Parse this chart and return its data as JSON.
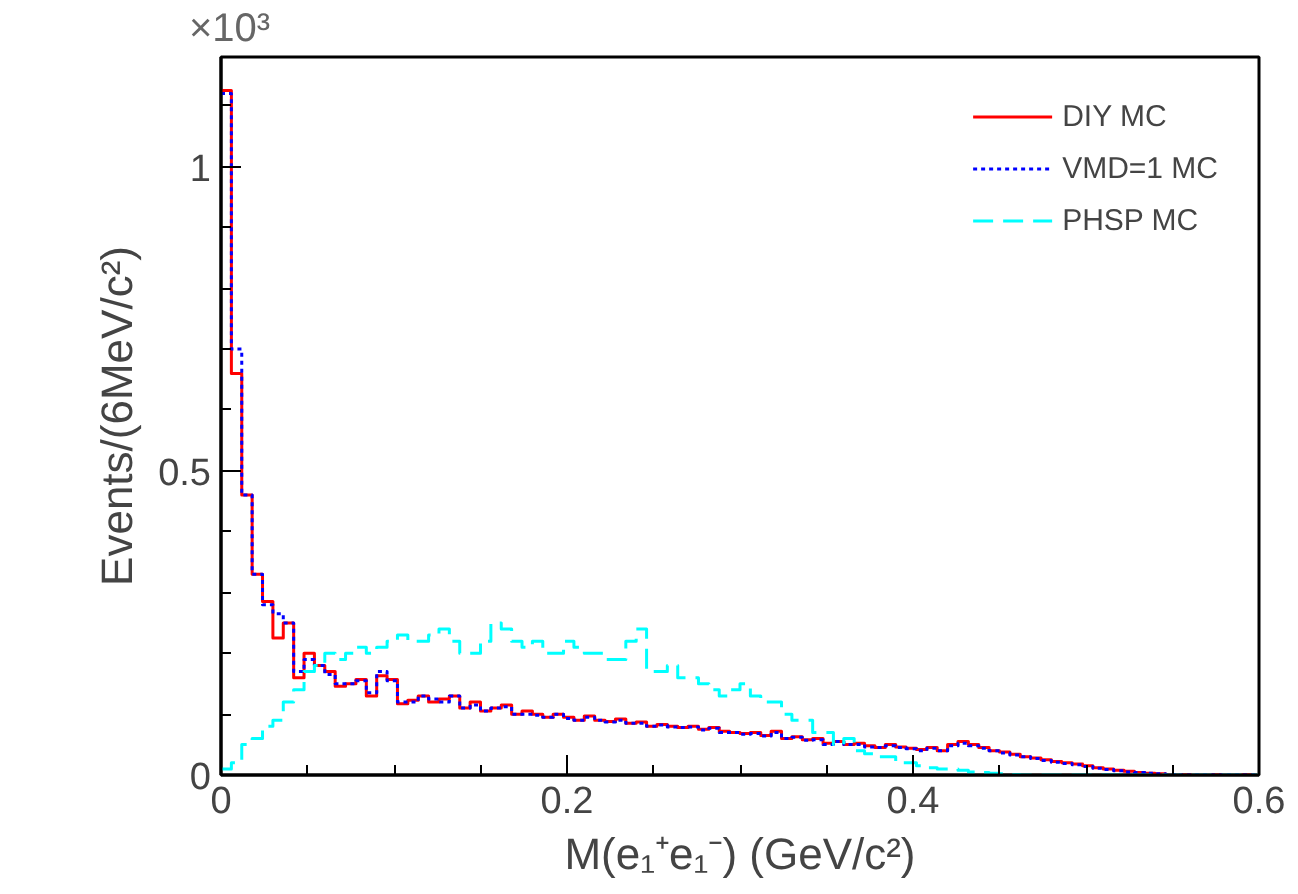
{
  "chart_data": {
    "type": "histogram",
    "xlabel": "M(e₁⁺e₁⁻) (GeV/c²)",
    "ylabel": "Events/(6MeV/c²)",
    "annotations": [
      "×10³"
    ],
    "bins": [
      0,
      0.006,
      0.012,
      0.018,
      0.024,
      0.03,
      0.036,
      0.042,
      0.048,
      0.054,
      0.06,
      0.066,
      0.072,
      0.078,
      0.084,
      0.09,
      0.096,
      0.102,
      0.108,
      0.114,
      0.12,
      0.126,
      0.132,
      0.138,
      0.144,
      0.15,
      0.156,
      0.162,
      0.168,
      0.174,
      0.18,
      0.186,
      0.192,
      0.198,
      0.204,
      0.21,
      0.216,
      0.222,
      0.228,
      0.234,
      0.24,
      0.246,
      0.252,
      0.258,
      0.264,
      0.27,
      0.276,
      0.282,
      0.288,
      0.294,
      0.3,
      0.306,
      0.312,
      0.318,
      0.324,
      0.33,
      0.336,
      0.342,
      0.348,
      0.354,
      0.36,
      0.366,
      0.372,
      0.378,
      0.384,
      0.39,
      0.396,
      0.402,
      0.408,
      0.414,
      0.42,
      0.426,
      0.432,
      0.438,
      0.444,
      0.45,
      0.456,
      0.462,
      0.468,
      0.474,
      0.48,
      0.486,
      0.492,
      0.498,
      0.504,
      0.51,
      0.516,
      0.522,
      0.528,
      0.534,
      0.54,
      0.546,
      0.552,
      0.558,
      0.564,
      0.57,
      0.576,
      0.582,
      0.588,
      0.594,
      0.6
    ],
    "series": [
      {
        "name": "DIY MC",
        "color": "#ff0000",
        "line_style": "solid",
        "values": [
          1.125,
          0.66,
          0.46,
          0.33,
          0.285,
          0.225,
          0.25,
          0.16,
          0.2,
          0.18,
          0.17,
          0.146,
          0.15,
          0.157,
          0.13,
          0.163,
          0.157,
          0.117,
          0.123,
          0.13,
          0.12,
          0.125,
          0.13,
          0.11,
          0.12,
          0.105,
          0.11,
          0.115,
          0.1,
          0.105,
          0.1,
          0.095,
          0.1,
          0.095,
          0.09,
          0.097,
          0.09,
          0.088,
          0.092,
          0.085,
          0.087,
          0.08,
          0.083,
          0.08,
          0.078,
          0.08,
          0.075,
          0.078,
          0.072,
          0.07,
          0.068,
          0.07,
          0.065,
          0.072,
          0.06,
          0.063,
          0.058,
          0.06,
          0.052,
          0.055,
          0.05,
          0.052,
          0.048,
          0.045,
          0.05,
          0.046,
          0.044,
          0.042,
          0.045,
          0.04,
          0.05,
          0.055,
          0.05,
          0.045,
          0.04,
          0.038,
          0.034,
          0.03,
          0.028,
          0.025,
          0.022,
          0.02,
          0.018,
          0.015,
          0.012,
          0.01,
          0.008,
          0.006,
          0.004,
          0.003,
          0.002,
          0.001,
          0,
          0,
          0,
          0,
          0,
          0,
          0,
          0
        ]
      },
      {
        "name": "VMD=1 MC",
        "color": "#0000ff",
        "line_style": "dotted",
        "values": [
          1.12,
          0.7,
          0.46,
          0.33,
          0.28,
          0.265,
          0.25,
          0.17,
          0.19,
          0.18,
          0.165,
          0.15,
          0.15,
          0.155,
          0.135,
          0.17,
          0.155,
          0.12,
          0.12,
          0.13,
          0.125,
          0.12,
          0.13,
          0.11,
          0.115,
          0.105,
          0.11,
          0.112,
          0.1,
          0.1,
          0.098,
          0.095,
          0.1,
          0.093,
          0.09,
          0.095,
          0.09,
          0.087,
          0.09,
          0.085,
          0.085,
          0.08,
          0.082,
          0.079,
          0.078,
          0.079,
          0.074,
          0.077,
          0.07,
          0.07,
          0.067,
          0.068,
          0.064,
          0.07,
          0.06,
          0.062,
          0.057,
          0.058,
          0.05,
          0.055,
          0.05,
          0.05,
          0.046,
          0.045,
          0.048,
          0.045,
          0.043,
          0.04,
          0.044,
          0.04,
          0.048,
          0.052,
          0.048,
          0.044,
          0.04,
          0.036,
          0.033,
          0.03,
          0.027,
          0.024,
          0.021,
          0.019,
          0.017,
          0.014,
          0.011,
          0.009,
          0.007,
          0.005,
          0.004,
          0.003,
          0.002,
          0.001,
          0,
          0,
          0,
          0,
          0,
          0,
          0,
          0
        ]
      },
      {
        "name": "PHSP MC",
        "color": "#00ffff",
        "line_style": "dashed",
        "values": [
          0.01,
          0.02,
          0.05,
          0.06,
          0.08,
          0.09,
          0.12,
          0.14,
          0.17,
          0.18,
          0.2,
          0.19,
          0.2,
          0.21,
          0.2,
          0.21,
          0.22,
          0.23,
          0.22,
          0.22,
          0.23,
          0.24,
          0.22,
          0.2,
          0.2,
          0.22,
          0.25,
          0.24,
          0.22,
          0.21,
          0.22,
          0.2,
          0.2,
          0.22,
          0.21,
          0.2,
          0.2,
          0.19,
          0.19,
          0.22,
          0.24,
          0.17,
          0.17,
          0.18,
          0.16,
          0.16,
          0.15,
          0.14,
          0.13,
          0.14,
          0.15,
          0.13,
          0.12,
          0.12,
          0.1,
          0.09,
          0.09,
          0.07,
          0.07,
          0.05,
          0.06,
          0.04,
          0.035,
          0.03,
          0.03,
          0.02,
          0.02,
          0.015,
          0.012,
          0.01,
          0.01,
          0.008,
          0.005,
          0.004,
          0.003,
          0.002,
          0.001,
          0,
          0,
          0,
          0,
          0,
          0,
          0,
          0,
          0,
          0,
          0,
          0,
          0,
          0,
          0,
          0,
          0,
          0,
          0,
          0,
          0,
          0,
          0
        ]
      }
    ],
    "xlim": [
      0,
      0.6
    ],
    "xticks": [
      0,
      0.2,
      0.4,
      0.6
    ],
    "ylim": [
      0,
      1.18
    ],
    "yticks": [
      0,
      0.5,
      1
    ],
    "grid": false,
    "legend": "top right"
  }
}
